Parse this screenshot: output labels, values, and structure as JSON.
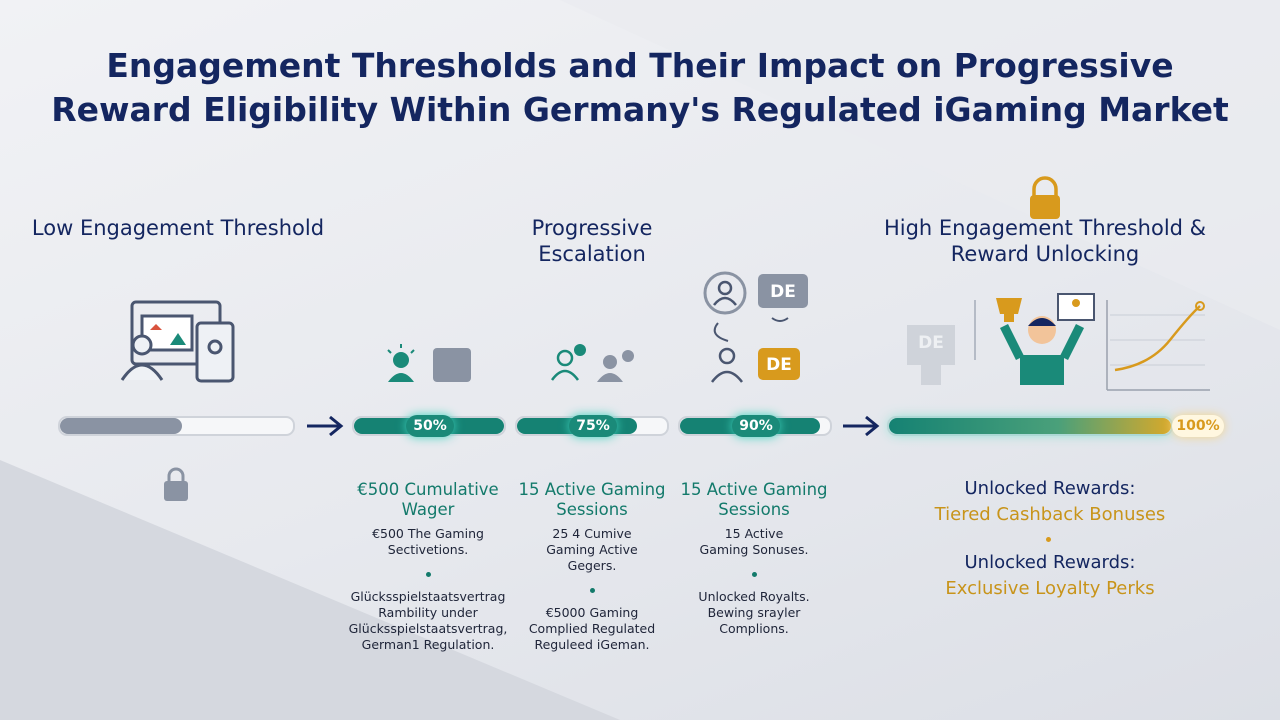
{
  "header": {
    "title": "Engagement Thresholds and Their Impact on Progressive Reward Eligibility Within Germany's Regulated iGaming Market"
  },
  "stages": [
    {
      "heading": "Low Engagement Threshold"
    },
    {
      "heading": "Progressive Escalation"
    },
    {
      "heading": "High Engagement Threshold & Reward Unlocking"
    }
  ],
  "progress": [
    "50%",
    "75%",
    "90%",
    "100%"
  ],
  "icons": {
    "labels": [
      "DE",
      "DE",
      "DE"
    ]
  },
  "columns": [
    {
      "title": "€500 Cumulative Wager",
      "description": "€500 The Gaming Sectivetions.",
      "note": "Glücksspielstaatsvertrag Rambility under Glücksspielstaatsvertrag, German1 Regulation."
    },
    {
      "title": "15 Active Gaming Sessions",
      "description": "25 4 Cumive Gaming Active Gegers.",
      "note": "€5000 Gaming Complied Regulated Reguleed iGeman."
    },
    {
      "title": "15 Active Gaming Sessions",
      "description": "15 Active Gaming Sonuses.",
      "note": "Unlocked Royalts. Bewing srayler Complions."
    }
  ],
  "rewards": [
    {
      "label": "Unlocked Rewards:",
      "name": "Tiered Cashback Bonuses"
    },
    {
      "label": "Unlocked Rewards:",
      "name": "Exclusive Loyalty Perks"
    }
  ]
}
